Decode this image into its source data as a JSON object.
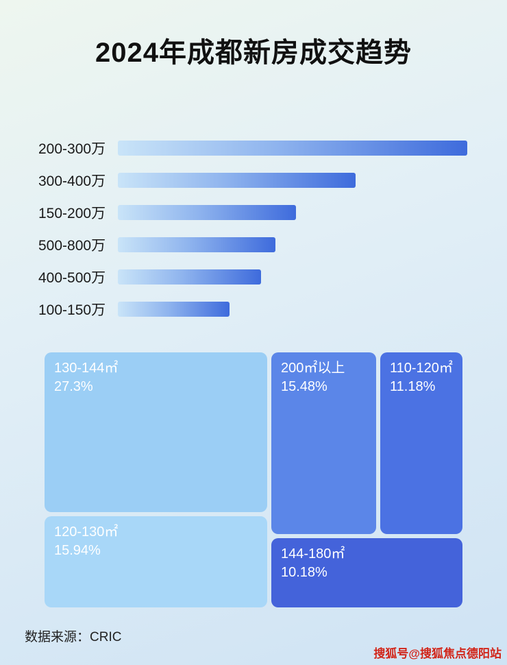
{
  "page": {
    "title": "2024年成都新房成交趋势",
    "source": "数据来源：CRIC",
    "watermark": "搜狐号@搜狐焦点德阳站"
  },
  "chart_data": [
    {
      "type": "bar",
      "orientation": "horizontal",
      "title": "2024年成都新房成交趋势",
      "categories": [
        "200-300万",
        "300-400万",
        "150-200万",
        "500-800万",
        "400-500万",
        "100-150万"
      ],
      "values": [
        100,
        68,
        51,
        45,
        41,
        32
      ],
      "values_unit": "relative bar length, % of longest bar (no numeric data labels shown)",
      "xlabel": "",
      "ylabel": "",
      "grid": false,
      "legend": false
    },
    {
      "type": "heatmap",
      "subtype": "treemap",
      "items": [
        {
          "label": "130-144㎡",
          "percent": "27.3%",
          "value": 27.3
        },
        {
          "label": "200㎡以上",
          "percent": "15.48%",
          "value": 15.48
        },
        {
          "label": "120-130㎡",
          "percent": "15.94%",
          "value": 15.94
        },
        {
          "label": "110-120㎡",
          "percent": "11.18%",
          "value": 11.18
        },
        {
          "label": "144-180㎡",
          "percent": "10.18%",
          "value": 10.18
        }
      ]
    }
  ],
  "colors": {
    "bar_gradient_start": "#c9e4f8",
    "bar_gradient_end": "#3e6bdc",
    "treemap_light": "#9bcef5",
    "treemap_lighter": "#a8d7f8",
    "treemap_medium": "#5b86e8",
    "treemap_dark": "#4b72e3",
    "treemap_darkest": "#4463da",
    "watermark_red": "#cf2318"
  }
}
